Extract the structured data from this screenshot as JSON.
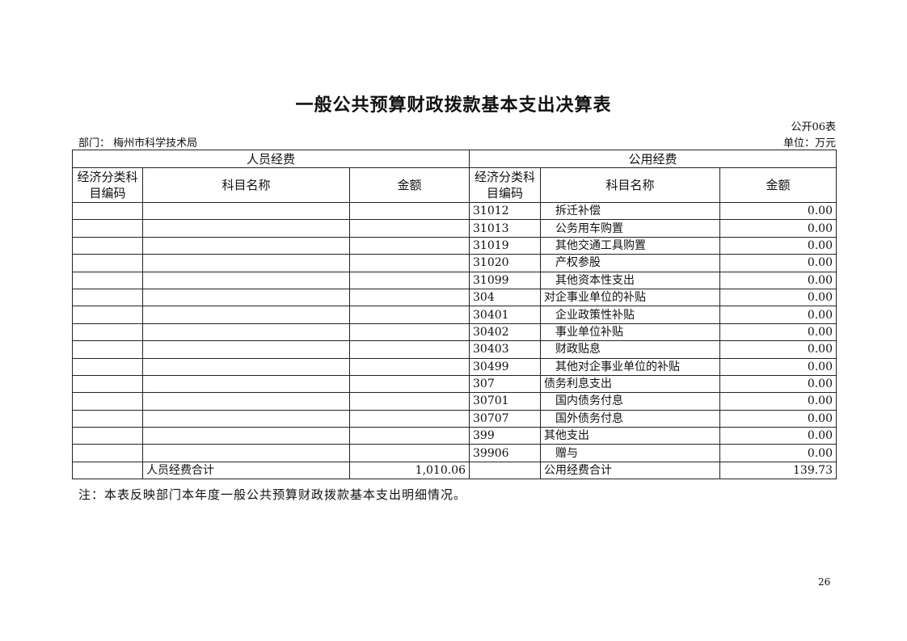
{
  "title": "一般公共预算财政拨款基本支出决算表",
  "table_no": "公开06表",
  "department": "部门：  梅州市科学技术局",
  "unit": "单位：万元",
  "table": {
    "group_headers": [
      "人员经费",
      "公用经费"
    ],
    "col_headers": [
      "经济分类科目编码",
      "科目名称",
      "金额",
      "经济分类科目编码",
      "科目名称",
      "金额"
    ],
    "rows": [
      {
        "code": "31012",
        "name": "拆迁补偿",
        "amount": "0.00",
        "indent": true
      },
      {
        "code": "31013",
        "name": "公务用车购置",
        "amount": "0.00",
        "indent": true
      },
      {
        "code": "31019",
        "name": "其他交通工具购置",
        "amount": "0.00",
        "indent": true
      },
      {
        "code": "31020",
        "name": "产权参股",
        "amount": "0.00",
        "indent": true
      },
      {
        "code": "31099",
        "name": "其他资本性支出",
        "amount": "0.00",
        "indent": true
      },
      {
        "code": "304",
        "name": "对企事业单位的补贴",
        "amount": "0.00",
        "indent": false
      },
      {
        "code": "30401",
        "name": "企业政策性补贴",
        "amount": "0.00",
        "indent": true
      },
      {
        "code": "30402",
        "name": "事业单位补贴",
        "amount": "0.00",
        "indent": true
      },
      {
        "code": "30403",
        "name": "财政贴息",
        "amount": "0.00",
        "indent": true
      },
      {
        "code": "30499",
        "name": "其他对企事业单位的补贴",
        "amount": "0.00",
        "indent": true
      },
      {
        "code": "307",
        "name": "债务利息支出",
        "amount": "0.00",
        "indent": false
      },
      {
        "code": "30701",
        "name": "国内债务付息",
        "amount": "0.00",
        "indent": true
      },
      {
        "code": "30707",
        "name": "国外债务付息",
        "amount": "0.00",
        "indent": true
      },
      {
        "code": "399",
        "name": "其他支出",
        "amount": "0.00",
        "indent": false
      },
      {
        "code": "39906",
        "name": "赠与",
        "amount": "0.00",
        "indent": true
      }
    ],
    "totals": {
      "personnel_label": "人员经费合计",
      "personnel_amount": "1,010.06",
      "public_label": "公用经费合计",
      "public_amount": "139.73"
    }
  },
  "note": "注：本表反映部门本年度一般公共预算财政拨款基本支出明细情况。",
  "page_number": "26"
}
